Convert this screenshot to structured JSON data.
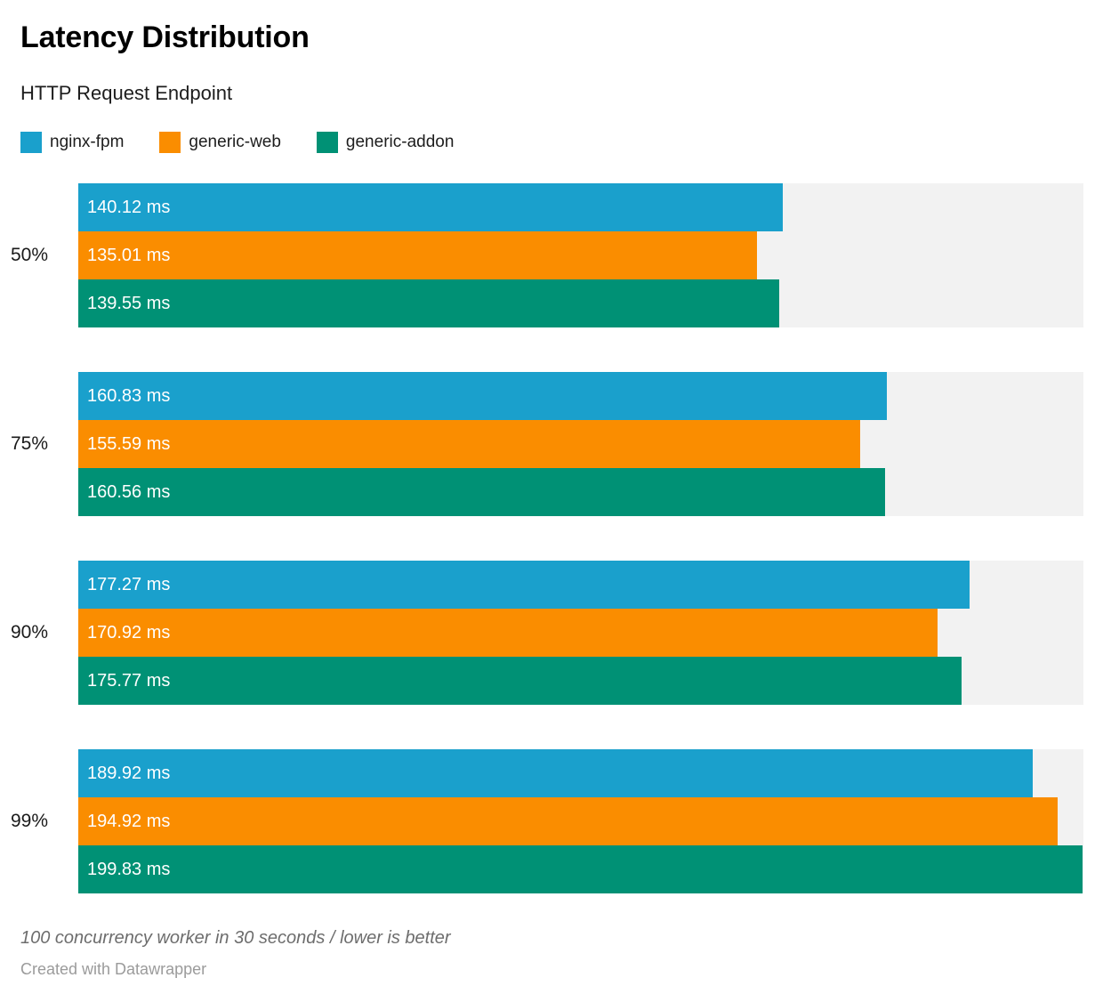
{
  "header": {
    "title": "Latency Distribution",
    "subtitle": "HTTP Request Endpoint"
  },
  "legend": [
    {
      "label": "nginx-fpm",
      "color": "#1AA0CC"
    },
    {
      "label": "generic-web",
      "color": "#FA8D00"
    },
    {
      "label": "generic-addon",
      "color": "#009175"
    }
  ],
  "chart_data": {
    "type": "bar",
    "orientation": "horizontal",
    "title": "Latency Distribution",
    "subtitle": "HTTP Request Endpoint",
    "categories": [
      "50%",
      "75%",
      "90%",
      "99%"
    ],
    "series": [
      {
        "name": "nginx-fpm",
        "color": "#1AA0CC",
        "values": [
          140.12,
          160.83,
          177.27,
          189.92
        ]
      },
      {
        "name": "generic-web",
        "color": "#FA8D00",
        "values": [
          135.01,
          155.59,
          170.92,
          194.92
        ]
      },
      {
        "name": "generic-addon",
        "color": "#009175",
        "values": [
          139.55,
          160.56,
          175.77,
          199.83
        ]
      }
    ],
    "value_suffix": " ms",
    "value_decimals": 2,
    "xlim": [
      0,
      200
    ],
    "track_color": "#F2F2F2",
    "grid": false,
    "legend_position": "top",
    "value_labels": "inside-start"
  },
  "footer": {
    "note": "100 concurrency worker in 30 seconds / lower is better",
    "credit": "Created with Datawrapper"
  }
}
